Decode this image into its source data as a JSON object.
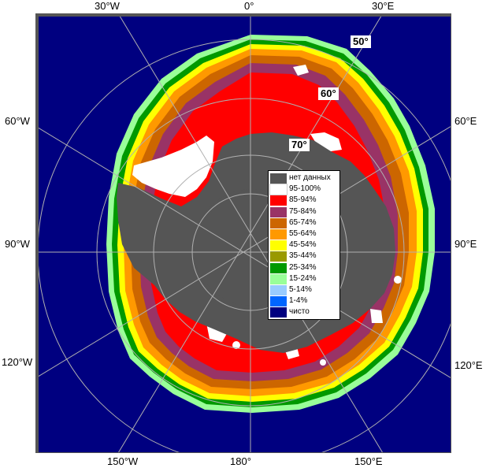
{
  "map": {
    "projection": "south-polar-stereographic",
    "colors": {
      "open_water": "#000080",
      "no_data": "#555555",
      "grid": "#b0b0b0",
      "frame": "#555555",
      "background": "#ffffff"
    }
  },
  "lon_labels": {
    "w30": "30°W",
    "zero": "0°",
    "e30": "30°E",
    "w60": "60°W",
    "e60": "60°E",
    "w90": "90°W",
    "e90": "90°E",
    "w120": "120°W",
    "e120": "120°E",
    "w150": "150°W",
    "d180": "180°",
    "e150": "150°E"
  },
  "lat_labels": {
    "s50": "50°",
    "s60": "60°",
    "s70": "70°"
  },
  "legend": {
    "items": [
      {
        "label": "нет данных",
        "color": "#555555"
      },
      {
        "label": "95-100%",
        "color": "#ffffff"
      },
      {
        "label": "85-94%",
        "color": "#ff0000"
      },
      {
        "label": "75-84%",
        "color": "#993366"
      },
      {
        "label": "65-74%",
        "color": "#cc6600"
      },
      {
        "label": "55-64%",
        "color": "#ff9900"
      },
      {
        "label": "45-54%",
        "color": "#ffff00"
      },
      {
        "label": "35-44%",
        "color": "#999900"
      },
      {
        "label": "25-34%",
        "color": "#009900"
      },
      {
        "label": "15-24%",
        "color": "#99ff99"
      },
      {
        "label": "5-14%",
        "color": "#99ccff"
      },
      {
        "label": "1-4%",
        "color": "#0066ff"
      },
      {
        "label": "чисто",
        "color": "#000080"
      }
    ]
  }
}
